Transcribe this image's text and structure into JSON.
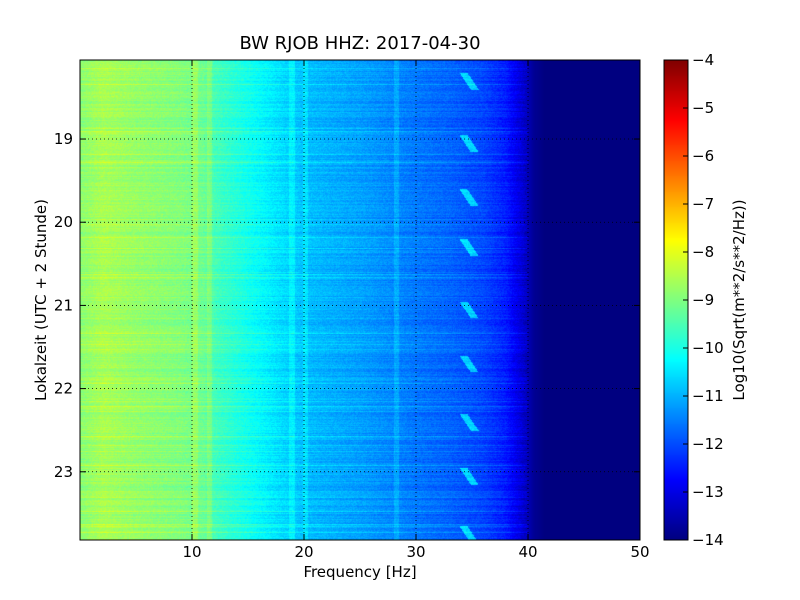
{
  "chart_data": {
    "type": "heatmap",
    "title": "BW RJOB HHZ: 2017-04-30",
    "xlabel": "Frequency [Hz]",
    "ylabel": "Lokalzeit (UTC + 2 Stunde)",
    "xlim": [
      0,
      50
    ],
    "ylim": [
      18.05,
      23.82
    ],
    "x_ticks": [
      10,
      20,
      30,
      40,
      50
    ],
    "y_ticks": [
      19,
      20,
      21,
      22,
      23
    ],
    "grid": true,
    "colormap": "jet",
    "colorbar": {
      "label": "Log10(Sqrt(m**2/s**2/Hz))",
      "vmin": -14,
      "vmax": -4,
      "ticks": [
        -4,
        -5,
        -6,
        -7,
        -8,
        -9,
        -10,
        -11,
        -12,
        -13,
        -14
      ]
    },
    "spectrum_profile": {
      "frequency_hz": [
        0,
        2,
        5,
        9,
        11,
        12,
        15,
        18,
        20,
        25,
        30,
        33,
        36,
        38,
        39.5,
        40.5,
        41.5,
        50
      ],
      "log10_amplitude": [
        -8.9,
        -8.6,
        -8.8,
        -9.0,
        -9.2,
        -9.6,
        -10.1,
        -10.6,
        -10.9,
        -11.2,
        -11.6,
        -11.8,
        -12.1,
        -12.5,
        -13.2,
        -13.8,
        -14.0,
        -14.0
      ]
    },
    "spectral_lines_hz": [
      10.2,
      11.5,
      18.9,
      20.1,
      28.2
    ],
    "transient_arrivals_hour": [
      18.2,
      18.95,
      19.6,
      20.2,
      20.95,
      21.6,
      22.3,
      22.95,
      23.65
    ]
  }
}
